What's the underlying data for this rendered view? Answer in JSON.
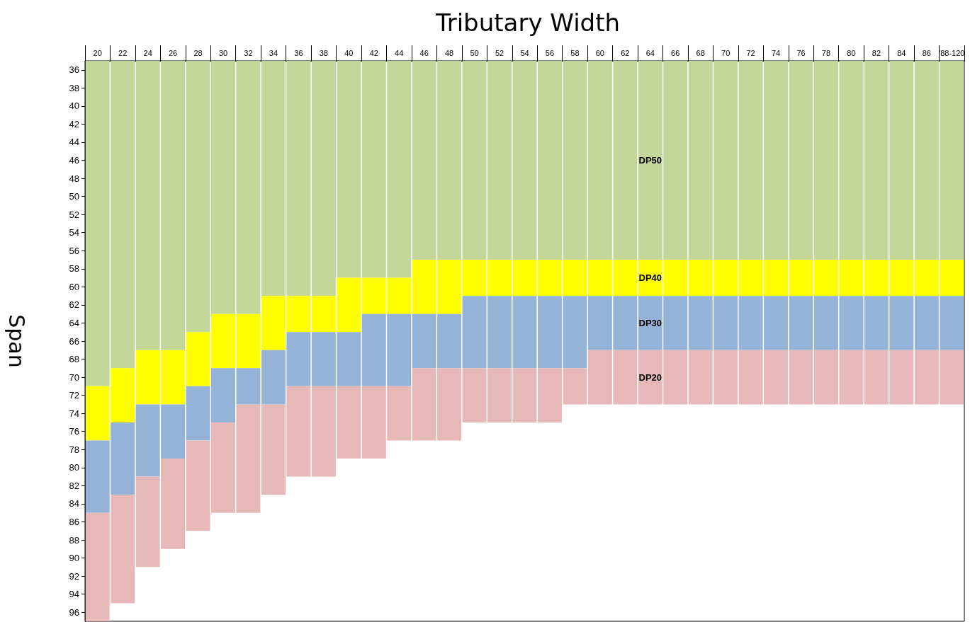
{
  "chart_data": {
    "type": "bar",
    "title": "Tributary Width",
    "ylabel": "Span",
    "categories": [
      "20",
      "22",
      "24",
      "26",
      "28",
      "30",
      "32",
      "34",
      "36",
      "38",
      "40",
      "42",
      "44",
      "46",
      "48",
      "50",
      "52",
      "54",
      "56",
      "58",
      "60",
      "62",
      "64",
      "66",
      "68",
      "70",
      "72",
      "74",
      "76",
      "78",
      "80",
      "82",
      "84",
      "86",
      "'88-120"
    ],
    "series": [
      {
        "name": "DP50",
        "color": "#c4d79b",
        "base": [
          35,
          35,
          35,
          35,
          35,
          35,
          35,
          35,
          35,
          35,
          35,
          35,
          35,
          35,
          35,
          35,
          35,
          35,
          35,
          35,
          35,
          35,
          35,
          35,
          35,
          35,
          35,
          35,
          35,
          35,
          35,
          35,
          35,
          35,
          35
        ],
        "values": [
          36,
          34,
          32,
          32,
          30,
          28,
          28,
          26,
          26,
          26,
          24,
          24,
          24,
          22,
          22,
          22,
          22,
          22,
          22,
          22,
          22,
          22,
          22,
          22,
          22,
          22,
          22,
          22,
          22,
          22,
          22,
          22,
          22,
          22,
          22
        ]
      },
      {
        "name": "DP40",
        "color": "#ffff00",
        "base": [
          71,
          69,
          67,
          67,
          65,
          63,
          63,
          61,
          61,
          61,
          59,
          59,
          59,
          57,
          57,
          57,
          57,
          57,
          57,
          57,
          57,
          57,
          57,
          57,
          57,
          57,
          57,
          57,
          57,
          57,
          57,
          57,
          57,
          57,
          57
        ],
        "values": [
          6,
          6,
          6,
          6,
          6,
          6,
          6,
          6,
          4,
          4,
          6,
          4,
          4,
          6,
          6,
          4,
          4,
          4,
          4,
          4,
          4,
          4,
          4,
          4,
          4,
          4,
          4,
          4,
          4,
          4,
          4,
          4,
          4,
          4,
          4
        ]
      },
      {
        "name": "DP30",
        "color": "#95b3d7",
        "base": [
          77,
          75,
          73,
          73,
          71,
          69,
          69,
          67,
          65,
          65,
          65,
          63,
          63,
          63,
          63,
          61,
          61,
          61,
          61,
          61,
          61,
          61,
          61,
          61,
          61,
          61,
          61,
          61,
          61,
          61,
          61,
          61,
          61,
          61,
          61
        ],
        "values": [
          8,
          8,
          8,
          6,
          6,
          6,
          4,
          6,
          6,
          6,
          6,
          8,
          8,
          6,
          6,
          8,
          8,
          8,
          8,
          8,
          6,
          6,
          6,
          6,
          6,
          6,
          6,
          6,
          6,
          6,
          6,
          6,
          6,
          6,
          6
        ]
      },
      {
        "name": "DP20",
        "color": "#e6b8b7",
        "base": [
          85,
          83,
          81,
          79,
          77,
          75,
          73,
          73,
          71,
          71,
          71,
          71,
          71,
          69,
          69,
          69,
          69,
          69,
          69,
          69,
          67,
          67,
          67,
          67,
          67,
          67,
          67,
          67,
          67,
          67,
          67,
          67,
          67,
          67,
          67
        ],
        "values": [
          12,
          12,
          10,
          10,
          10,
          10,
          12,
          10,
          10,
          10,
          8,
          8,
          6,
          8,
          8,
          6,
          6,
          6,
          6,
          4,
          6,
          6,
          6,
          6,
          6,
          6,
          6,
          6,
          6,
          6,
          6,
          6,
          6,
          6,
          6
        ]
      }
    ],
    "ylim": [
      97,
      35
    ],
    "yticks": [
      36,
      38,
      40,
      42,
      44,
      46,
      48,
      50,
      52,
      54,
      56,
      58,
      60,
      62,
      64,
      66,
      68,
      70,
      72,
      74,
      76,
      78,
      80,
      82,
      84,
      86,
      88,
      90,
      92,
      94,
      96
    ],
    "grid": false,
    "legend": false
  }
}
